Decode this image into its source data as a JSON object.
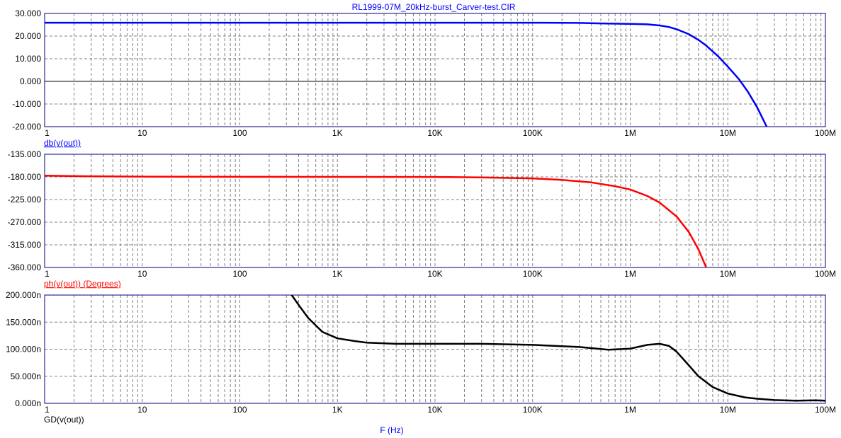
{
  "title": "RL1999-07M_20kHz-burst_Carver-test.CIR",
  "xlabel": "F (Hz)",
  "x_ticks": [
    {
      "v": 1,
      "label": "1"
    },
    {
      "v": 10,
      "label": "10"
    },
    {
      "v": 100,
      "label": "100"
    },
    {
      "v": 1000,
      "label": "1K"
    },
    {
      "v": 10000,
      "label": "10K"
    },
    {
      "v": 100000,
      "label": "100K"
    },
    {
      "v": 1000000,
      "label": "1M"
    },
    {
      "v": 10000000,
      "label": "10M"
    },
    {
      "v": 100000000,
      "label": "100M"
    }
  ],
  "colors": {
    "frame": "#000080",
    "grid": "#808080",
    "db": "#0000ff",
    "phase": "#ff0000",
    "gd": "#000000",
    "title": "#0000ff",
    "ticklabel": "#000000"
  },
  "chart_data": [
    {
      "type": "line",
      "xscale": "log",
      "xlim": [
        1,
        100000000
      ],
      "ylim": [
        -20,
        30
      ],
      "y_ticks": [
        {
          "v": 30,
          "label": "30.000"
        },
        {
          "v": 20,
          "label": "20.000"
        },
        {
          "v": 10,
          "label": "10.000"
        },
        {
          "v": 0,
          "label": "0.000"
        },
        {
          "v": -10,
          "label": "-10.000"
        },
        {
          "v": -20,
          "label": "-20.000"
        }
      ],
      "zero_line": 0,
      "series": [
        {
          "name": "db(v(out))",
          "color": "#0000ff",
          "x": [
            1,
            10,
            100,
            1000,
            10000,
            100000,
            300000,
            500000,
            1000000,
            1500000,
            2000000,
            2500000,
            3000000,
            4000000,
            5000000,
            6000000,
            8000000,
            10000000,
            13000000,
            16000000,
            20000000,
            25000000
          ],
          "values": [
            25.9,
            25.9,
            25.9,
            25.9,
            25.9,
            25.9,
            25.8,
            25.6,
            25.4,
            25.2,
            24.7,
            24.0,
            23.0,
            20.8,
            18.3,
            15.8,
            11.0,
            6.5,
            1.0,
            -4.5,
            -11.5,
            -20.0
          ]
        }
      ]
    },
    {
      "type": "line",
      "xscale": "log",
      "xlim": [
        1,
        100000000
      ],
      "ylim": [
        -360,
        -135
      ],
      "y_ticks": [
        {
          "v": -135,
          "label": "-135.000"
        },
        {
          "v": -180,
          "label": "-180.000"
        },
        {
          "v": -225,
          "label": "-225.000"
        },
        {
          "v": -270,
          "label": "-270.000"
        },
        {
          "v": -315,
          "label": "-315.000"
        },
        {
          "v": -360,
          "label": "-360.000"
        }
      ],
      "series": [
        {
          "name": "ph(v(out)) (Degrees)",
          "color": "#ff0000",
          "x": [
            1,
            2,
            10,
            100,
            1000,
            10000,
            30000,
            100000,
            200000,
            400000,
            700000,
            1000000,
            1500000,
            2000000,
            3000000,
            4000000,
            5000000,
            6000000
          ],
          "values": [
            -177.5,
            -178.5,
            -179.5,
            -179.9,
            -180.0,
            -180.1,
            -181.0,
            -183.0,
            -186.0,
            -191.0,
            -198.5,
            -205.0,
            -218.0,
            -231.0,
            -259.0,
            -290.0,
            -324.0,
            -360.0
          ]
        }
      ]
    },
    {
      "type": "line",
      "xscale": "log",
      "xlim": [
        1,
        100000000
      ],
      "ylim": [
        0,
        200
      ],
      "y_ticks": [
        {
          "v": 200,
          "label": "200.000n"
        },
        {
          "v": 150,
          "label": "150.000n"
        },
        {
          "v": 100,
          "label": "100.000n"
        },
        {
          "v": 50,
          "label": "50.000n"
        },
        {
          "v": 0,
          "label": "0.000n"
        }
      ],
      "series": [
        {
          "name": "GD(v(out))",
          "color": "#000000",
          "x": [
            340,
            400,
            500,
            700,
            1000,
            1500,
            2000,
            4000,
            10000,
            30000,
            100000,
            300000,
            600000,
            1000000,
            1500000,
            2000000,
            2500000,
            3000000,
            4000000,
            5000000,
            7000000,
            10000000,
            15000000,
            20000000,
            30000000,
            50000000,
            80000000,
            100000000
          ],
          "values": [
            200,
            182,
            158,
            132,
            120,
            115,
            112,
            110,
            110,
            110,
            108,
            104,
            99,
            101,
            108,
            110,
            106,
            95,
            70,
            50,
            30,
            18,
            11,
            8.5,
            6,
            5,
            5.5,
            5
          ]
        }
      ]
    }
  ],
  "panel_labels": [
    {
      "text": "db(v(out))",
      "color": "#0000ff",
      "underline": true
    },
    {
      "text": "ph(v(out)) (Degrees)",
      "color": "#ff0000",
      "underline": true
    },
    {
      "text": "GD(v(out))",
      "color": "#000000",
      "underline": false
    }
  ]
}
